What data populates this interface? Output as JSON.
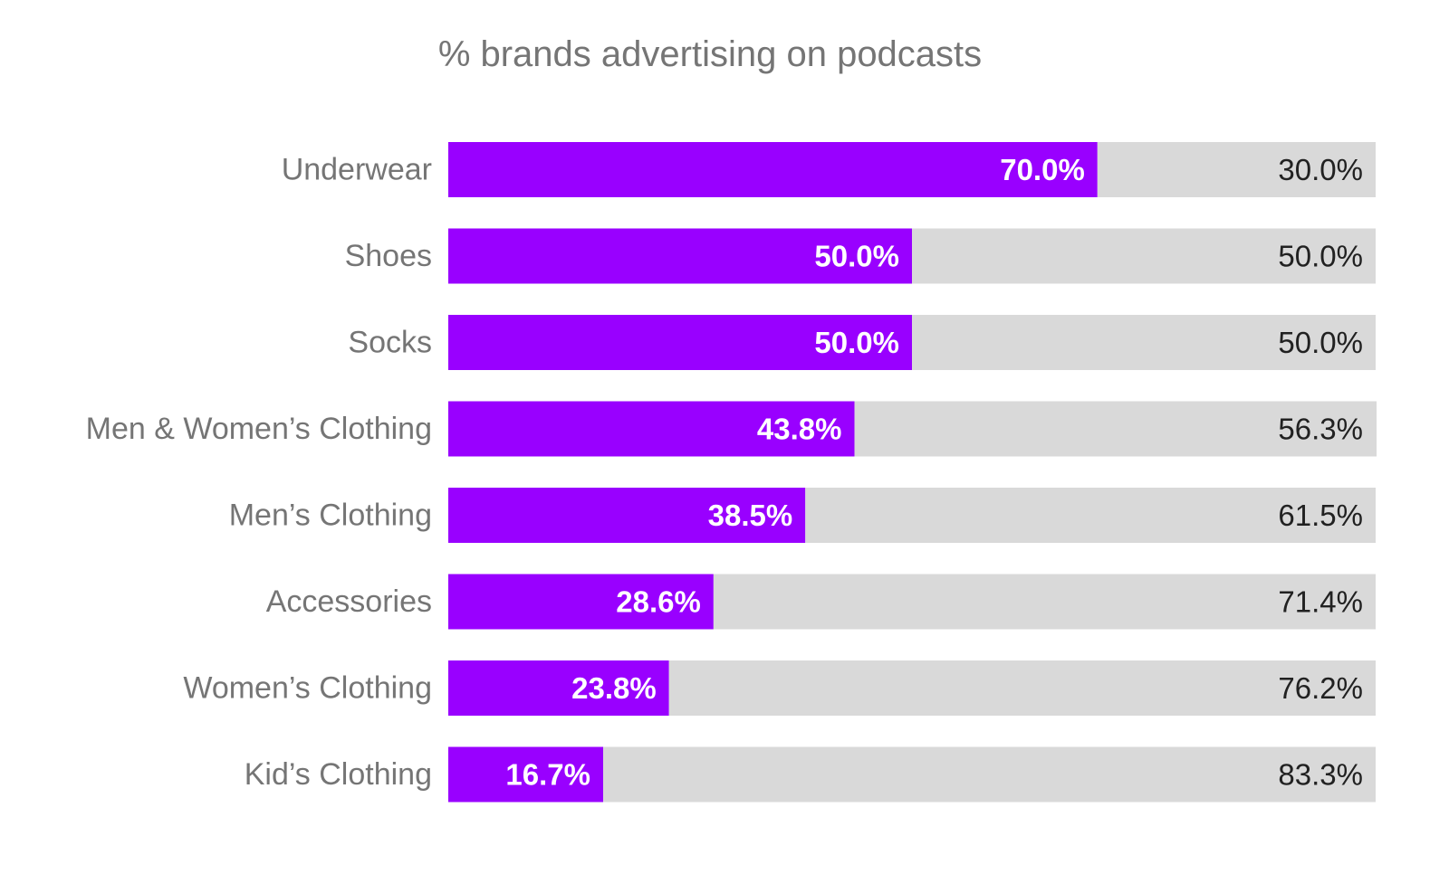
{
  "chart_data": {
    "type": "bar",
    "orientation": "horizontal",
    "stacked": true,
    "title": "% brands advertising on podcasts",
    "xlabel": "",
    "ylabel": "",
    "xlim": [
      0,
      100
    ],
    "grid": false,
    "legend": "none",
    "categories": [
      "Underwear",
      "Shoes",
      "Socks",
      "Men & Women’s Clothing",
      "Men’s Clothing",
      "Accessories",
      "Women’s Clothing",
      "Kid’s Clothing"
    ],
    "series": [
      {
        "color": "#9900ff",
        "values": [
          70.0,
          50.0,
          50.0,
          43.8,
          38.5,
          28.6,
          23.8,
          16.7
        ],
        "labels": [
          "70.0%",
          "50.0%",
          "50.0%",
          "43.8%",
          "38.5%",
          "28.6%",
          "23.8%",
          "16.7%"
        ]
      },
      {
        "color": "#d9d9d9",
        "values": [
          30.0,
          50.0,
          50.0,
          56.3,
          61.5,
          71.4,
          76.2,
          83.3
        ],
        "labels": [
          "30.0%",
          "50.0%",
          "50.0%",
          "56.3%",
          "61.5%",
          "71.4%",
          "76.2%",
          "83.3%"
        ]
      }
    ]
  }
}
